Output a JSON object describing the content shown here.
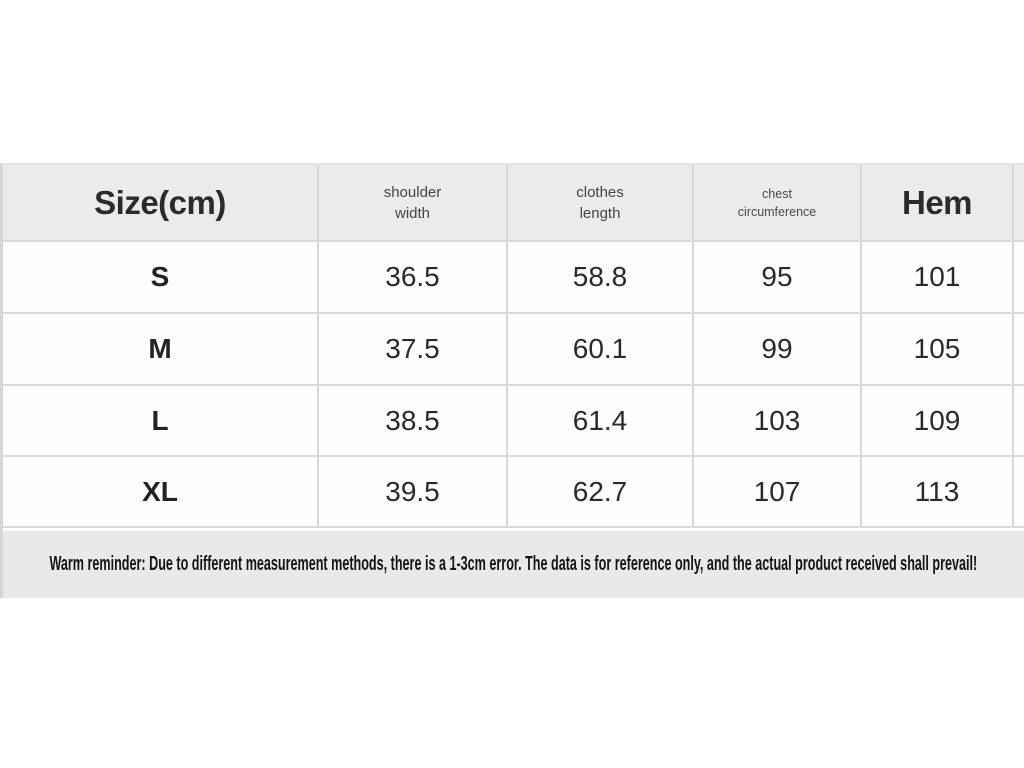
{
  "colors": {
    "header_bg": "#ebebe9",
    "note_bg": "#e9e9e7",
    "row_bg": "#fefefe",
    "grid_line": "#d7d7d5",
    "text_dark": "#2a2a2a"
  },
  "header_lines": {
    "size_label": "Size(cm)",
    "shoulder": [
      "shoulder",
      "width"
    ],
    "clothes": [
      "clothes",
      "length"
    ],
    "chest": [
      "chest",
      "circumference"
    ],
    "hem_label": "Hem"
  },
  "chart_data": {
    "type": "table",
    "title": "Size(cm)",
    "columns": [
      "Size(cm)",
      "shoulder width",
      "clothes length",
      "chest circumference",
      "Hem"
    ],
    "rows": [
      [
        "S",
        "36.5",
        "58.8",
        "95",
        "101"
      ],
      [
        "M",
        "37.5",
        "60.1",
        "99",
        "105"
      ],
      [
        "L",
        "38.5",
        "61.4",
        "103",
        "109"
      ],
      [
        "XL",
        "39.5",
        "62.7",
        "107",
        "113"
      ]
    ],
    "note": "Warm reminder: Due to different measurement methods, there is a 1-3cm error. The data is for reference only, and the actual product received shall prevail!"
  }
}
